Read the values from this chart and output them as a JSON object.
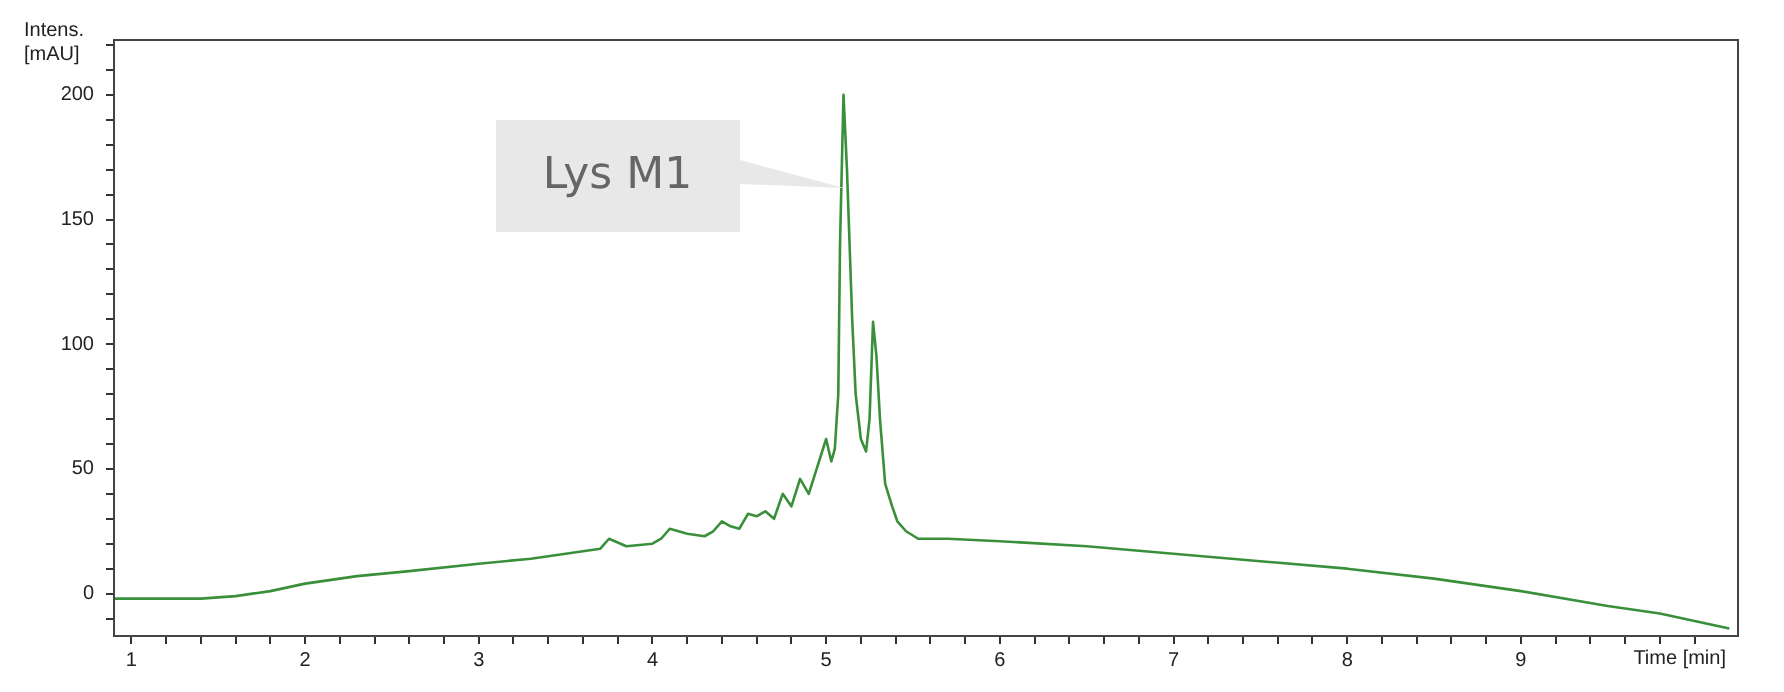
{
  "chart_data": {
    "type": "line",
    "xlabel": "Time [min]",
    "ylabel": "Intens. [mAU]",
    "annotations": [
      {
        "text": "Lys M1",
        "x": 5.1,
        "y": 163
      }
    ],
    "x": [
      0.9,
      1.2,
      1.4,
      1.6,
      1.8,
      2.0,
      2.3,
      2.6,
      3.0,
      3.3,
      3.7,
      3.75,
      3.85,
      4.0,
      4.05,
      4.1,
      4.15,
      4.2,
      4.3,
      4.35,
      4.4,
      4.45,
      4.5,
      4.55,
      4.6,
      4.65,
      4.7,
      4.75,
      4.8,
      4.85,
      4.9,
      4.95,
      5.0,
      5.03,
      5.05,
      5.07,
      5.08,
      5.1,
      5.12,
      5.13,
      5.15,
      5.17,
      5.2,
      5.23,
      5.25,
      5.27,
      5.29,
      5.31,
      5.34,
      5.38,
      5.41,
      5.46,
      5.53,
      5.7,
      6.0,
      6.5,
      7.0,
      7.5,
      8.0,
      8.5,
      9.0,
      9.5,
      9.8,
      10.0,
      10.2
    ],
    "series": [
      {
        "color": "#3a8f3a",
        "values": [
          -2,
          -2,
          -2,
          -1,
          1,
          4,
          7,
          9,
          12,
          14,
          18,
          22,
          19,
          20,
          22,
          26,
          25,
          24,
          23,
          25,
          29,
          27,
          26,
          32,
          31,
          33,
          30,
          40,
          35,
          46,
          40,
          51,
          62,
          53,
          58,
          80,
          140,
          200,
          170,
          150,
          110,
          80,
          62,
          57,
          70,
          109,
          95,
          70,
          44,
          35,
          29,
          25,
          22,
          22,
          21,
          19,
          16,
          13,
          10,
          6,
          1,
          -5,
          -8,
          -11,
          -14
        ]
      }
    ],
    "xlim": [
      0.9,
      10.25
    ],
    "ylim": [
      -17,
      222
    ],
    "xticks": [
      1,
      {
        "value": 1.2,
        "label": null
      },
      {
        "value": 1.4,
        "label": null
      },
      {
        "value": 1.6,
        "label": null
      },
      {
        "value": 1.8,
        "label": null
      },
      2,
      {
        "value": 2.2,
        "label": null
      },
      {
        "value": 2.4,
        "label": null
      },
      {
        "value": 2.6,
        "label": null
      },
      {
        "value": 2.8,
        "label": null
      },
      3,
      {
        "value": 3.2,
        "label": null
      },
      {
        "value": 3.4,
        "label": null
      },
      {
        "value": 3.6,
        "label": null
      },
      {
        "value": 3.8,
        "label": null
      },
      4,
      {
        "value": 4.2,
        "label": null
      },
      {
        "value": 4.4,
        "label": null
      },
      {
        "value": 4.6,
        "label": null
      },
      {
        "value": 4.8,
        "label": null
      },
      5,
      {
        "value": 5.2,
        "label": null
      },
      {
        "value": 5.4,
        "label": null
      },
      {
        "value": 5.6,
        "label": null
      },
      {
        "value": 5.8,
        "label": null
      },
      6,
      {
        "value": 6.2,
        "label": null
      },
      {
        "value": 6.4,
        "label": null
      },
      {
        "value": 6.6,
        "label": null
      },
      {
        "value": 6.8,
        "label": null
      },
      7,
      {
        "value": 7.2,
        "label": null
      },
      {
        "value": 7.4,
        "label": null
      },
      {
        "value": 7.6,
        "label": null
      },
      {
        "value": 7.8,
        "label": null
      },
      8,
      {
        "value": 8.2,
        "label": null
      },
      {
        "value": 8.4,
        "label": null
      },
      {
        "value": 8.6,
        "label": null
      },
      {
        "value": 8.8,
        "label": null
      },
      9,
      {
        "value": 9.2,
        "label": null
      },
      {
        "value": 9.4,
        "label": null
      },
      {
        "value": 9.6,
        "label": null
      },
      {
        "value": 9.8,
        "label": null
      },
      {
        "value": 10,
        "label": null
      }
    ],
    "yticks": [
      {
        "value": -10,
        "label": null
      },
      0,
      {
        "value": 10,
        "label": null
      },
      {
        "value": 20,
        "label": null
      },
      {
        "value": 30,
        "label": null
      },
      {
        "value": 40,
        "label": null
      },
      50,
      {
        "value": 60,
        "label": null
      },
      {
        "value": 70,
        "label": null
      },
      {
        "value": 80,
        "label": null
      },
      {
        "value": 90,
        "label": null
      },
      100,
      {
        "value": 110,
        "label": null
      },
      {
        "value": 120,
        "label": null
      },
      {
        "value": 130,
        "label": null
      },
      {
        "value": 140,
        "label": null
      },
      150,
      {
        "value": 160,
        "label": null
      },
      {
        "value": 170,
        "label": null
      },
      {
        "value": 180,
        "label": null
      },
      {
        "value": 190,
        "label": null
      },
      200,
      {
        "value": 210,
        "label": null
      },
      {
        "value": 220,
        "label": null
      }
    ],
    "grid": false,
    "legend": false,
    "marker": "none",
    "line_style": "solid"
  }
}
